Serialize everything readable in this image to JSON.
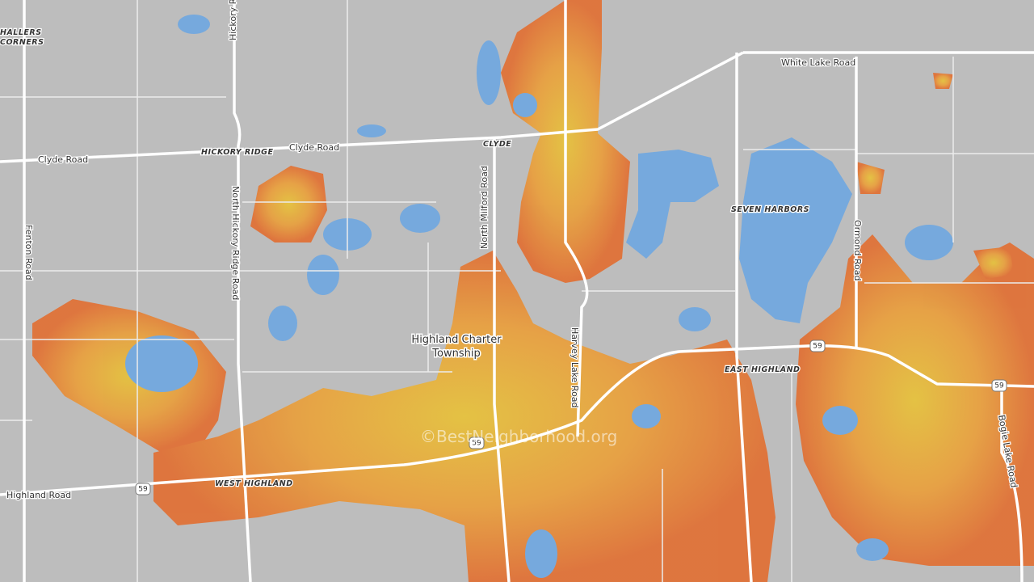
{
  "labels": {
    "hallers_corners_1": "HALLERS",
    "hallers_corners_2": "CORNERS",
    "hickory_ridge_road_top": "Hickory Ridge Road",
    "clyde_road_west": "Clyde Road",
    "hickory_ridge": "HICKORY RIDGE",
    "clyde_road_east": "Clyde Road",
    "clyde": "CLYDE",
    "white_lake_road": "White Lake Road",
    "north_milford_road": "North Milford Road",
    "north_hickory_ridge_road": "North Hickory Ridge Road",
    "fenton_road": "Fenton Road",
    "seven_harbors": "SEVEN HARBORS",
    "ormond_road": "Ormond Road",
    "township_1": "Highland Charter",
    "township_2": "Township",
    "harvey_lake_road": "Harvey Lake Road",
    "east_highland": "EAST HIGHLAND",
    "west_highland": "WEST HIGHLAND",
    "highland_road": "Highland Road",
    "bogie_lake_road": "Bogie Lake Road"
  },
  "shields": [
    "59",
    "59",
    "59",
    "59"
  ],
  "watermark": "©BestNeighborhood.org"
}
